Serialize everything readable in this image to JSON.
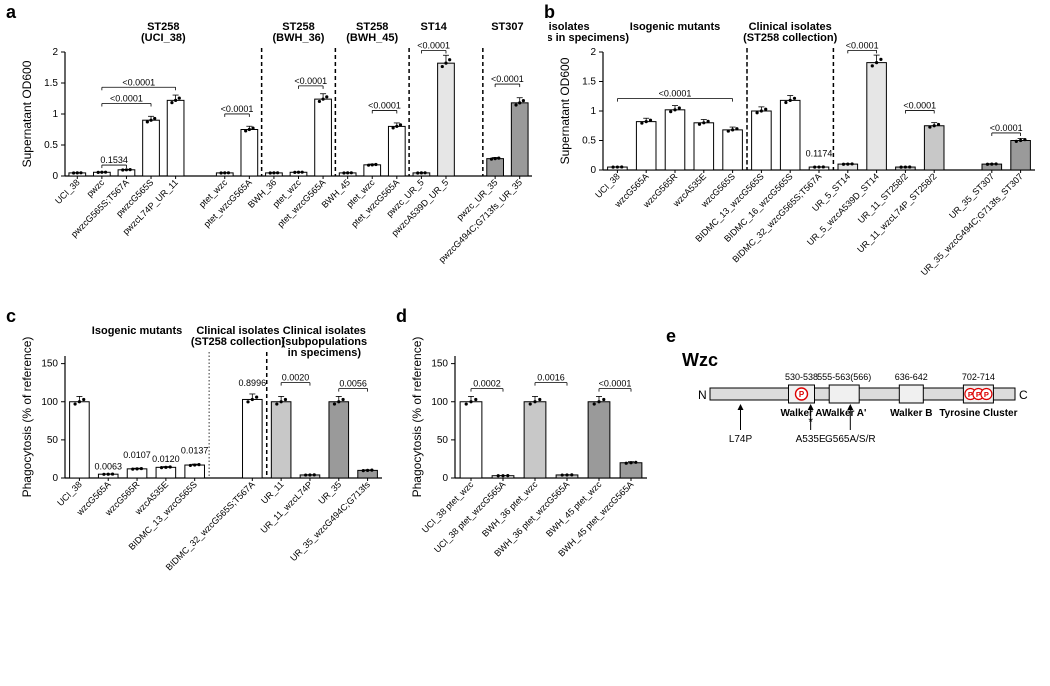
{
  "colors": {
    "bg": "#ffffff",
    "axis": "#000000",
    "open_fill": "#ffffff",
    "open_stroke": "#000000",
    "light_gray": "#e6e6e6",
    "mid_gray": "#c8c8c8",
    "dark_gray": "#9a9a9a",
    "point": "#000000",
    "dash": "#000000"
  },
  "panel_labels": {
    "a": "a",
    "b": "b",
    "c": "c",
    "d": "d",
    "e": "e"
  },
  "panel_a": {
    "type": "bar",
    "y_axis_title": "Supernatant OD600",
    "ylim": [
      0,
      2.0
    ],
    "ytick_step": 0.5,
    "yticks": [
      0,
      0.5,
      1.0,
      1.5,
      2.0
    ],
    "bar_width": 0.68,
    "groups": [
      {
        "label": "ST258\n(UCI_38)",
        "span": [
          0,
          7
        ]
      },
      {
        "label": "ST258\n(BWH_36)",
        "span": [
          8,
          10
        ]
      },
      {
        "label": "ST258\n(BWH_45)",
        "span": [
          11,
          13
        ]
      },
      {
        "label": "ST14",
        "span": [
          14,
          15
        ]
      },
      {
        "label": "ST307",
        "span": [
          17,
          18
        ]
      }
    ],
    "dash_after": [
      7,
      10,
      13,
      16
    ],
    "bars": [
      {
        "name": "UCI_38",
        "v": 0.05,
        "fill": "open"
      },
      {
        "name": "pwzc",
        "v": 0.06,
        "fill": "open"
      },
      {
        "name": "pwzcG565S;T567A",
        "v": 0.1,
        "fill": "open"
      },
      {
        "name": "pwzcG565S",
        "v": 0.9,
        "fill": "open"
      },
      {
        "name": "pwzcL74P_UR_11",
        "v": 1.22,
        "fill": "open"
      },
      {
        "name": "",
        "v": 0,
        "fill": "open",
        "empty": true
      },
      {
        "name": "ptet_wzc",
        "v": 0.05,
        "fill": "open"
      },
      {
        "name": "ptet_wzcG565A",
        "v": 0.75,
        "fill": "open"
      },
      {
        "name": "BWH_36",
        "v": 0.05,
        "fill": "open"
      },
      {
        "name": "ptet_wzc",
        "v": 0.06,
        "fill": "open"
      },
      {
        "name": "ptet_wzcG565A",
        "v": 1.24,
        "fill": "open"
      },
      {
        "name": "BWH_45",
        "v": 0.05,
        "fill": "open"
      },
      {
        "name": "ptet_wzc",
        "v": 0.18,
        "fill": "open"
      },
      {
        "name": "ptet_wzcG565A",
        "v": 0.8,
        "fill": "open"
      },
      {
        "name": "pwzc_UR_5",
        "v": 0.05,
        "fill": "light"
      },
      {
        "name": "pwzcA539D_UR_5",
        "v": 1.82,
        "fill": "light"
      },
      {
        "name": "",
        "v": 0,
        "fill": "open",
        "empty": true
      },
      {
        "name": "pwzc_UR_35",
        "v": 0.28,
        "fill": "dark"
      },
      {
        "name": "pwzcG494C;G713fs_UR_35",
        "v": 1.18,
        "fill": "dark"
      }
    ],
    "annotations": [
      {
        "text": "0.1534",
        "over": [
          1,
          2
        ]
      },
      {
        "text": "<0.0001",
        "over": [
          1,
          3
        ]
      },
      {
        "text": "<0.0001",
        "over": [
          1,
          4
        ]
      },
      {
        "text": "<0.0001",
        "over": [
          6,
          7
        ]
      },
      {
        "text": "<0.0001",
        "over": [
          9,
          10
        ]
      },
      {
        "text": "<0.0001",
        "over": [
          12,
          13
        ]
      },
      {
        "text": "<0.0001",
        "over": [
          14,
          15
        ]
      },
      {
        "text": "<0.0001",
        "over": [
          17,
          18
        ]
      }
    ]
  },
  "panel_b": {
    "type": "bar",
    "y_axis_title": "Supernatant OD600",
    "ylim": [
      0,
      2.0
    ],
    "ytick_step": 0.5,
    "yticks": [
      0,
      0.5,
      1.0,
      1.5,
      2.0
    ],
    "bar_width": 0.68,
    "groups": [
      {
        "label": "Isogenic mutants",
        "span": [
          0,
          4
        ]
      },
      {
        "label": "Clinical isolates\n(ST258 collection)",
        "span": [
          5,
          7
        ]
      },
      {
        "label": "Clinical isolates\n(subpopulations in specimens)",
        "span": [
          8,
          15
        ]
      }
    ],
    "dash_after": [
      4,
      7
    ],
    "dotted_after": [
      4
    ],
    "bars": [
      {
        "name": "UCI_38",
        "v": 0.05,
        "fill": "open"
      },
      {
        "name": "wzcG565A",
        "v": 0.82,
        "fill": "open"
      },
      {
        "name": "wzcG565R",
        "v": 1.02,
        "fill": "open"
      },
      {
        "name": "wzcA535E",
        "v": 0.8,
        "fill": "open"
      },
      {
        "name": "wzcG565S",
        "v": 0.68,
        "fill": "open"
      },
      {
        "name": "BIDMC_13_wzcG565S",
        "v": 1.0,
        "fill": "open"
      },
      {
        "name": "BIDMC_16_wzcG565S",
        "v": 1.18,
        "fill": "open"
      },
      {
        "name": "BIDMC_32_wzcG565S;T567A",
        "v": 0.05,
        "fill": "open"
      },
      {
        "name": "UR_5_ST14",
        "v": 0.1,
        "fill": "light"
      },
      {
        "name": "UR_5_wzcA539D_ST14",
        "v": 1.82,
        "fill": "light"
      },
      {
        "name": "UR_11_ST258/2",
        "v": 0.05,
        "fill": "mid"
      },
      {
        "name": "UR_11_wzcL74P_ST258/2",
        "v": 0.75,
        "fill": "mid"
      },
      {
        "name": "",
        "v": 0,
        "fill": "open",
        "empty": true
      },
      {
        "name": "UR_35_ST307",
        "v": 0.1,
        "fill": "dark"
      },
      {
        "name": "UR_35_wzcG494C;G713fs_ST307",
        "v": 0.5,
        "fill": "dark"
      }
    ],
    "annotations": [
      {
        "text": "<0.0001",
        "over": [
          0,
          4
        ],
        "long": true
      },
      {
        "text": "0.1174",
        "over": [
          7,
          7
        ],
        "single": true
      },
      {
        "text": "<0.0001",
        "over": [
          8,
          9
        ]
      },
      {
        "text": "<0.0001",
        "over": [
          10,
          11
        ]
      },
      {
        "text": "<0.0001",
        "over": [
          13,
          14
        ]
      }
    ]
  },
  "panel_c": {
    "type": "bar",
    "y_axis_title": "Phagocytosis (% of reference)",
    "ylim": [
      0,
      160
    ],
    "ytick_step": 50,
    "yticks": [
      0,
      50,
      100,
      150
    ],
    "bar_width": 0.68,
    "groups": [
      {
        "label": "Isogenic mutants",
        "span": [
          0,
          4
        ]
      },
      {
        "label": "Clinical isolates\n(ST258 collection)",
        "span": [
          5,
          6
        ]
      },
      {
        "label": "Clinical isolates\n(subpopulations\nin specimens)",
        "span": [
          7,
          10
        ]
      }
    ],
    "dash_after": [
      6
    ],
    "dotted_after": [
      4
    ],
    "bars": [
      {
        "name": "UCI_38",
        "v": 100,
        "fill": "open"
      },
      {
        "name": "wzcG565A",
        "v": 5,
        "fill": "open"
      },
      {
        "name": "wzcG565R",
        "v": 12,
        "fill": "open"
      },
      {
        "name": "wzcA535E",
        "v": 14,
        "fill": "open"
      },
      {
        "name": "BIDMC_13_wzcG565S",
        "v": 17,
        "fill": "open"
      },
      {
        "name": "",
        "v": 0,
        "fill": "open",
        "empty": true
      },
      {
        "name": "BIDMC_32_wzcG565S;T567A",
        "v": 103,
        "fill": "open"
      },
      {
        "name": "UR_11",
        "v": 100,
        "fill": "mid"
      },
      {
        "name": "UR_11_wzcL74P",
        "v": 4,
        "fill": "mid"
      },
      {
        "name": "UR_35",
        "v": 100,
        "fill": "dark"
      },
      {
        "name": "UR_35_wzcG494C;G713fs",
        "v": 10,
        "fill": "dark"
      }
    ],
    "annotations": [
      {
        "text": "0.0063",
        "over": [
          1,
          1
        ],
        "single": true
      },
      {
        "text": "0.0107",
        "over": [
          2,
          2
        ],
        "single": true
      },
      {
        "text": "0.0120",
        "over": [
          3,
          3
        ],
        "single": true
      },
      {
        "text": "0.0137",
        "over": [
          4,
          4
        ],
        "single": true
      },
      {
        "text": "0.8996",
        "over": [
          6,
          6
        ],
        "single": true
      },
      {
        "text": "0.0020",
        "over": [
          7,
          8
        ]
      },
      {
        "text": "0.0056",
        "over": [
          9,
          10
        ]
      }
    ]
  },
  "panel_d": {
    "type": "bar",
    "y_axis_title": "Phagocytosis (% of reference)",
    "ylim": [
      0,
      160
    ],
    "ytick_step": 50,
    "yticks": [
      0,
      50,
      100,
      150
    ],
    "bar_width": 0.68,
    "bars": [
      {
        "name": "UCI_38 ptet_wzc",
        "v": 100,
        "fill": "open"
      },
      {
        "name": "UCI_38 ptet_wzcG565A",
        "v": 3,
        "fill": "open"
      },
      {
        "name": "BWH_36 ptet_wzc",
        "v": 100,
        "fill": "mid"
      },
      {
        "name": "BWH_36 ptet_wzcG565A",
        "v": 4,
        "fill": "mid"
      },
      {
        "name": "BWH_45 ptet_wzc",
        "v": 100,
        "fill": "dark"
      },
      {
        "name": "BWH_45 ptet_wzcG565A",
        "v": 20,
        "fill": "dark"
      }
    ],
    "annotations": [
      {
        "text": "0.0002",
        "over": [
          0,
          1
        ]
      },
      {
        "text": "0.0016",
        "over": [
          2,
          3
        ]
      },
      {
        "text": "<0.0001",
        "over": [
          4,
          5
        ]
      }
    ]
  },
  "panel_e": {
    "type": "diagram",
    "protein": "Wzc",
    "n_label": "N",
    "c_label": "C",
    "domains": [
      {
        "range": "530-538",
        "label": "Walker A",
        "marker": "P"
      },
      {
        "range": "555-563(566)",
        "label": "Walker A'"
      },
      {
        "range": "636-642",
        "label": "Walker B"
      },
      {
        "range": "702-714",
        "label": "Tyrosine Cluster",
        "p": [
          "P",
          "P",
          "P"
        ]
      }
    ],
    "arrows": [
      {
        "label": "L74P",
        "at": 0.1
      },
      {
        "label": "A535E",
        "at": 0.33,
        "star": true
      },
      {
        "label": "G565A/S/R",
        "at": 0.46
      }
    ]
  }
}
